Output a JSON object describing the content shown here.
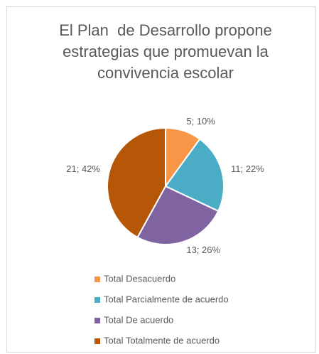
{
  "chart_data": {
    "type": "pie",
    "title": "El Plan  de Desarrollo propone estrategias que promuevan la convivencia escolar",
    "categories": [
      "Total Desacuerdo",
      "Total Parcialmente de acuerdo",
      "Total De acuerdo",
      "Total Totalmente de acuerdo"
    ],
    "values": [
      5,
      11,
      13,
      21
    ],
    "value_labels": [
      "5; 10%",
      "11; 22%",
      "13; 26%",
      "21; 42%"
    ],
    "colors": [
      "#f79646",
      "#4bacc6",
      "#8064a2",
      "#b65708"
    ],
    "legend": "bottom"
  }
}
